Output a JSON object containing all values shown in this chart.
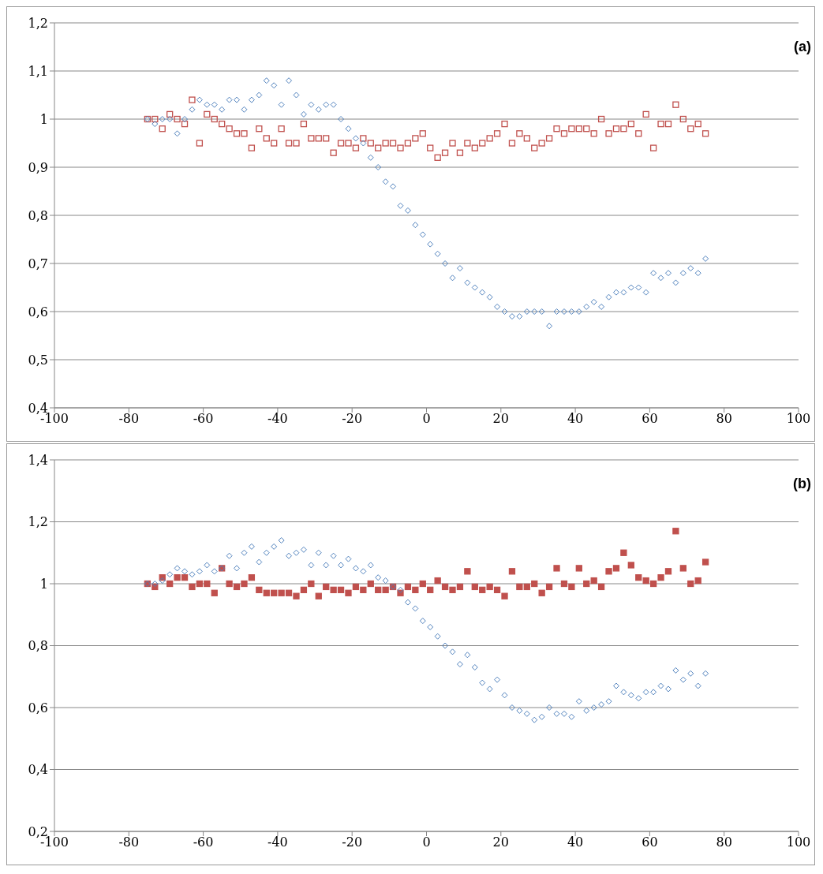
{
  "chart_data": [
    {
      "type": "scatter",
      "annotations": [
        "(a)"
      ],
      "grid": "y",
      "legend": false,
      "xlim": [
        -100,
        100
      ],
      "xticks": [
        -100,
        -80,
        -60,
        -40,
        -20,
        0,
        20,
        40,
        60,
        80,
        100
      ],
      "ylim": [
        0.4,
        1.2
      ],
      "yticks": [
        {
          "value": 0.4,
          "label": "0,4"
        },
        {
          "value": 0.5,
          "label": "0,5"
        },
        {
          "value": 0.6,
          "label": "0,6"
        },
        {
          "value": 0.7,
          "label": "0,7"
        },
        {
          "value": 0.8,
          "label": "0,8"
        },
        {
          "value": 0.9,
          "label": "0,9"
        },
        {
          "value": 1,
          "label": "1"
        },
        {
          "value": 1.1,
          "label": "1,1"
        },
        {
          "value": 1.2,
          "label": "1,2"
        }
      ],
      "x": [
        -75,
        -73,
        -71,
        -69,
        -67,
        -65,
        -63,
        -61,
        -59,
        -57,
        -55,
        -53,
        -51,
        -49,
        -47,
        -45,
        -43,
        -41,
        -39,
        -37,
        -35,
        -33,
        -31,
        -29,
        -27,
        -25,
        -23,
        -21,
        -19,
        -17,
        -15,
        -13,
        -11,
        -9,
        -7,
        -5,
        -3,
        -1,
        1,
        3,
        5,
        7,
        9,
        11,
        13,
        15,
        17,
        19,
        21,
        23,
        25,
        27,
        29,
        31,
        33,
        35,
        37,
        39,
        41,
        43,
        45,
        47,
        49,
        51,
        53,
        55,
        57,
        59,
        61,
        63,
        65,
        67,
        69,
        71,
        73,
        75
      ],
      "series": [
        {
          "color": "#4f81bd",
          "marker": "diamond",
          "values": [
            1.0,
            0.99,
            1.0,
            1.0,
            0.97,
            1.0,
            1.02,
            1.04,
            1.03,
            1.03,
            1.02,
            1.04,
            1.04,
            1.02,
            1.04,
            1.05,
            1.08,
            1.07,
            1.03,
            1.08,
            1.05,
            1.01,
            1.03,
            1.02,
            1.03,
            1.03,
            1.0,
            0.98,
            0.96,
            0.95,
            0.92,
            0.9,
            0.87,
            0.86,
            0.82,
            0.81,
            0.78,
            0.76,
            0.74,
            0.72,
            0.7,
            0.67,
            0.69,
            0.66,
            0.65,
            0.64,
            0.63,
            0.61,
            0.6,
            0.59,
            0.59,
            0.6,
            0.6,
            0.6,
            0.57,
            0.6,
            0.6,
            0.6,
            0.6,
            0.61,
            0.62,
            0.61,
            0.63,
            0.64,
            0.64,
            0.65,
            0.65,
            0.64,
            0.68,
            0.67,
            0.68,
            0.66,
            0.68,
            0.69,
            0.68,
            0.71
          ]
        },
        {
          "color": "#c0504d",
          "marker": "square",
          "values": [
            1.0,
            1.0,
            0.98,
            1.01,
            1.0,
            0.99,
            1.04,
            0.95,
            1.01,
            1.0,
            0.99,
            0.98,
            0.97,
            0.97,
            0.94,
            0.98,
            0.96,
            0.95,
            0.98,
            0.95,
            0.95,
            0.99,
            0.96,
            0.96,
            0.96,
            0.93,
            0.95,
            0.95,
            0.94,
            0.96,
            0.95,
            0.94,
            0.95,
            0.95,
            0.94,
            0.95,
            0.96,
            0.97,
            0.94,
            0.92,
            0.93,
            0.95,
            0.93,
            0.95,
            0.94,
            0.95,
            0.96,
            0.97,
            0.99,
            0.95,
            0.97,
            0.96,
            0.94,
            0.95,
            0.96,
            0.98,
            0.97,
            0.98,
            0.98,
            0.98,
            0.97,
            1.0,
            0.97,
            0.98,
            0.98,
            0.99,
            0.97,
            1.01,
            0.94,
            0.99,
            0.99,
            1.03,
            1.0,
            0.98,
            0.99,
            0.97
          ]
        }
      ]
    },
    {
      "type": "scatter",
      "annotations": [
        "(b)"
      ],
      "grid": "y",
      "legend": false,
      "xlim": [
        -100,
        100
      ],
      "xticks": [
        -100,
        -80,
        -60,
        -40,
        -20,
        0,
        20,
        40,
        60,
        80,
        100
      ],
      "ylim": [
        0.2,
        1.4
      ],
      "yticks": [
        {
          "value": 0.2,
          "label": "0,2"
        },
        {
          "value": 0.4,
          "label": "0,4"
        },
        {
          "value": 0.6,
          "label": "0,6"
        },
        {
          "value": 0.8,
          "label": "0,8"
        },
        {
          "value": 1,
          "label": "1"
        },
        {
          "value": 1.2,
          "label": "1,2"
        },
        {
          "value": 1.4,
          "label": "1,4"
        }
      ],
      "x": [
        -75,
        -73,
        -71,
        -69,
        -67,
        -65,
        -63,
        -61,
        -59,
        -57,
        -55,
        -53,
        -51,
        -49,
        -47,
        -45,
        -43,
        -41,
        -39,
        -37,
        -35,
        -33,
        -31,
        -29,
        -27,
        -25,
        -23,
        -21,
        -19,
        -17,
        -15,
        -13,
        -11,
        -9,
        -7,
        -5,
        -3,
        -1,
        1,
        3,
        5,
        7,
        9,
        11,
        13,
        15,
        17,
        19,
        21,
        23,
        25,
        27,
        29,
        31,
        33,
        35,
        37,
        39,
        41,
        43,
        45,
        47,
        49,
        51,
        53,
        55,
        57,
        59,
        61,
        63,
        65,
        67,
        69,
        71,
        73,
        75
      ],
      "series": [
        {
          "color": "#4f81bd",
          "marker": "diamond",
          "values": [
            1.0,
            1.0,
            1.01,
            1.03,
            1.05,
            1.04,
            1.03,
            1.04,
            1.06,
            1.04,
            1.05,
            1.09,
            1.05,
            1.1,
            1.12,
            1.07,
            1.1,
            1.12,
            1.14,
            1.09,
            1.1,
            1.11,
            1.06,
            1.1,
            1.06,
            1.09,
            1.06,
            1.08,
            1.05,
            1.04,
            1.06,
            1.02,
            1.01,
            0.99,
            0.98,
            0.94,
            0.92,
            0.88,
            0.86,
            0.83,
            0.8,
            0.78,
            0.74,
            0.77,
            0.73,
            0.68,
            0.66,
            0.69,
            0.64,
            0.6,
            0.59,
            0.58,
            0.56,
            0.57,
            0.6,
            0.58,
            0.58,
            0.57,
            0.62,
            0.59,
            0.6,
            0.61,
            0.62,
            0.67,
            0.65,
            0.64,
            0.63,
            0.65,
            0.65,
            0.67,
            0.66,
            0.72,
            0.69,
            0.71,
            0.67,
            0.71
          ]
        },
        {
          "color": "#c0504d",
          "marker": "square",
          "values": [
            1.0,
            0.99,
            1.02,
            1.0,
            1.02,
            1.02,
            0.99,
            1.0,
            1.0,
            0.97,
            1.05,
            1.0,
            0.99,
            1.0,
            1.02,
            0.98,
            0.97,
            0.97,
            0.97,
            0.97,
            0.96,
            0.98,
            1.0,
            0.96,
            0.99,
            0.98,
            0.98,
            0.97,
            0.99,
            0.98,
            1.0,
            0.98,
            0.98,
            0.99,
            0.97,
            0.99,
            0.98,
            1.0,
            0.98,
            1.01,
            0.99,
            0.98,
            0.99,
            1.04,
            0.99,
            0.98,
            0.99,
            0.98,
            0.96,
            1.04,
            0.99,
            0.99,
            1.0,
            0.97,
            0.99,
            1.05,
            1.0,
            0.99,
            1.05,
            1.0,
            1.01,
            0.99,
            1.04,
            1.05,
            1.1,
            1.06,
            1.02,
            1.01,
            1.0,
            1.02,
            1.04,
            1.17,
            1.05,
            1.0,
            1.01,
            1.07
          ]
        }
      ]
    }
  ]
}
